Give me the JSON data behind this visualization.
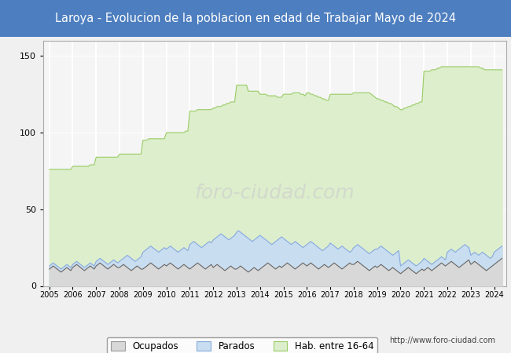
{
  "title": "Laroya - Evolucion de la poblacion en edad de Trabajar Mayo de 2024",
  "title_bg": "#4d7ebf",
  "title_color": "white",
  "ylim": [
    0,
    160
  ],
  "yticks": [
    0,
    50,
    100,
    150
  ],
  "url_text": "http://www.foro-ciudad.com",
  "legend_labels": [
    "Ocupados",
    "Parados",
    "Hab. entre 16-64"
  ],
  "color_ocupados_line": "#666666",
  "color_ocupados_fill": "#d8d8d8",
  "color_parados_line": "#88aadd",
  "color_parados_fill": "#c8ddf0",
  "color_hab_line": "#99cc66",
  "color_hab_fill": "#ddeecc",
  "x_positions": [
    2005.0,
    2005.083,
    2005.167,
    2005.25,
    2005.333,
    2005.417,
    2005.5,
    2005.583,
    2005.667,
    2005.75,
    2005.833,
    2005.917,
    2006.0,
    2006.083,
    2006.167,
    2006.25,
    2006.333,
    2006.417,
    2006.5,
    2006.583,
    2006.667,
    2006.75,
    2006.833,
    2006.917,
    2007.0,
    2007.083,
    2007.167,
    2007.25,
    2007.333,
    2007.417,
    2007.5,
    2007.583,
    2007.667,
    2007.75,
    2007.833,
    2007.917,
    2008.0,
    2008.083,
    2008.167,
    2008.25,
    2008.333,
    2008.417,
    2008.5,
    2008.583,
    2008.667,
    2008.75,
    2008.833,
    2008.917,
    2009.0,
    2009.083,
    2009.167,
    2009.25,
    2009.333,
    2009.417,
    2009.5,
    2009.583,
    2009.667,
    2009.75,
    2009.833,
    2009.917,
    2010.0,
    2010.083,
    2010.167,
    2010.25,
    2010.333,
    2010.417,
    2010.5,
    2010.583,
    2010.667,
    2010.75,
    2010.833,
    2010.917,
    2011.0,
    2011.083,
    2011.167,
    2011.25,
    2011.333,
    2011.417,
    2011.5,
    2011.583,
    2011.667,
    2011.75,
    2011.833,
    2011.917,
    2012.0,
    2012.083,
    2012.167,
    2012.25,
    2012.333,
    2012.417,
    2012.5,
    2012.583,
    2012.667,
    2012.75,
    2012.833,
    2012.917,
    2013.0,
    2013.083,
    2013.167,
    2013.25,
    2013.333,
    2013.417,
    2013.5,
    2013.583,
    2013.667,
    2013.75,
    2013.833,
    2013.917,
    2014.0,
    2014.083,
    2014.167,
    2014.25,
    2014.333,
    2014.417,
    2014.5,
    2014.583,
    2014.667,
    2014.75,
    2014.833,
    2014.917,
    2015.0,
    2015.083,
    2015.167,
    2015.25,
    2015.333,
    2015.417,
    2015.5,
    2015.583,
    2015.667,
    2015.75,
    2015.833,
    2015.917,
    2016.0,
    2016.083,
    2016.167,
    2016.25,
    2016.333,
    2016.417,
    2016.5,
    2016.583,
    2016.667,
    2016.75,
    2016.833,
    2016.917,
    2017.0,
    2017.083,
    2017.167,
    2017.25,
    2017.333,
    2017.417,
    2017.5,
    2017.583,
    2017.667,
    2017.75,
    2017.833,
    2017.917,
    2018.0,
    2018.083,
    2018.167,
    2018.25,
    2018.333,
    2018.417,
    2018.5,
    2018.583,
    2018.667,
    2018.75,
    2018.833,
    2018.917,
    2019.0,
    2019.083,
    2019.167,
    2019.25,
    2019.333,
    2019.417,
    2019.5,
    2019.583,
    2019.667,
    2019.75,
    2019.833,
    2019.917,
    2020.0,
    2020.083,
    2020.167,
    2020.25,
    2020.333,
    2020.417,
    2020.5,
    2020.583,
    2020.667,
    2020.75,
    2020.833,
    2020.917,
    2021.0,
    2021.083,
    2021.167,
    2021.25,
    2021.333,
    2021.417,
    2021.5,
    2021.583,
    2021.667,
    2021.75,
    2021.833,
    2021.917,
    2022.0,
    2022.083,
    2022.167,
    2022.25,
    2022.333,
    2022.417,
    2022.5,
    2022.583,
    2022.667,
    2022.75,
    2022.833,
    2022.917,
    2023.0,
    2023.083,
    2023.167,
    2023.25,
    2023.333,
    2023.417,
    2023.5,
    2023.583,
    2023.667,
    2023.75,
    2023.833,
    2023.917,
    2024.0,
    2024.083,
    2024.167,
    2024.25,
    2024.333
  ],
  "hab_16_64": [
    76,
    76,
    76,
    76,
    76,
    76,
    76,
    76,
    76,
    76,
    76,
    76,
    78,
    78,
    78,
    78,
    78,
    78,
    78,
    78,
    78,
    79,
    79,
    79,
    84,
    84,
    84,
    84,
    84,
    84,
    84,
    84,
    84,
    84,
    84,
    84,
    86,
    86,
    86,
    86,
    86,
    86,
    86,
    86,
    86,
    86,
    86,
    86,
    95,
    95,
    95,
    96,
    96,
    96,
    96,
    96,
    96,
    96,
    96,
    96,
    100,
    100,
    100,
    100,
    100,
    100,
    100,
    100,
    100,
    100,
    101,
    101,
    114,
    114,
    114,
    114,
    115,
    115,
    115,
    115,
    115,
    115,
    115,
    115,
    116,
    116,
    117,
    117,
    117,
    118,
    118,
    119,
    119,
    120,
    120,
    120,
    131,
    131,
    131,
    131,
    131,
    131,
    127,
    127,
    127,
    127,
    127,
    127,
    125,
    125,
    125,
    125,
    124,
    124,
    124,
    124,
    124,
    123,
    123,
    123,
    125,
    125,
    125,
    125,
    125,
    126,
    126,
    126,
    126,
    125,
    125,
    124,
    126,
    126,
    125,
    125,
    124,
    124,
    123,
    123,
    122,
    122,
    121,
    121,
    125,
    125,
    125,
    125,
    125,
    125,
    125,
    125,
    125,
    125,
    125,
    125,
    126,
    126,
    126,
    126,
    126,
    126,
    126,
    126,
    126,
    125,
    124,
    123,
    122,
    122,
    121,
    121,
    120,
    120,
    119,
    119,
    118,
    117,
    117,
    116,
    115,
    115,
    116,
    116,
    117,
    117,
    118,
    118,
    119,
    119,
    120,
    120,
    140,
    140,
    140,
    140,
    141,
    141,
    141,
    142,
    142,
    143,
    143,
    143,
    143,
    143,
    143,
    143,
    143,
    143,
    143,
    143,
    143,
    143,
    143,
    143,
    143,
    143,
    143,
    143,
    143,
    142,
    142,
    141,
    141,
    141,
    141,
    141,
    141,
    141,
    141,
    141,
    141
  ],
  "parados": [
    13,
    14,
    15,
    14,
    13,
    12,
    11,
    12,
    13,
    14,
    13,
    12,
    14,
    15,
    16,
    15,
    14,
    13,
    12,
    13,
    14,
    15,
    14,
    13,
    16,
    17,
    18,
    17,
    16,
    15,
    14,
    15,
    16,
    17,
    16,
    15,
    16,
    17,
    18,
    19,
    20,
    19,
    18,
    17,
    16,
    17,
    18,
    19,
    22,
    23,
    24,
    25,
    26,
    25,
    24,
    23,
    22,
    23,
    24,
    25,
    24,
    25,
    26,
    25,
    24,
    23,
    22,
    23,
    24,
    25,
    24,
    23,
    27,
    28,
    29,
    28,
    27,
    26,
    25,
    26,
    27,
    28,
    29,
    28,
    30,
    31,
    32,
    33,
    34,
    33,
    32,
    31,
    30,
    31,
    32,
    33,
    35,
    36,
    35,
    34,
    33,
    32,
    31,
    30,
    29,
    30,
    31,
    32,
    33,
    32,
    31,
    30,
    29,
    28,
    27,
    28,
    29,
    30,
    31,
    32,
    31,
    30,
    29,
    28,
    27,
    28,
    29,
    28,
    27,
    26,
    25,
    26,
    27,
    28,
    29,
    28,
    27,
    26,
    25,
    24,
    23,
    24,
    25,
    26,
    28,
    27,
    26,
    25,
    24,
    25,
    26,
    25,
    24,
    23,
    22,
    23,
    25,
    26,
    27,
    26,
    25,
    24,
    23,
    22,
    21,
    22,
    23,
    24,
    24,
    25,
    26,
    25,
    24,
    23,
    22,
    21,
    20,
    21,
    22,
    23,
    13,
    14,
    15,
    16,
    17,
    16,
    15,
    14,
    13,
    14,
    15,
    16,
    18,
    17,
    16,
    15,
    14,
    15,
    16,
    17,
    18,
    19,
    18,
    17,
    22,
    23,
    24,
    23,
    22,
    23,
    24,
    25,
    26,
    27,
    26,
    25,
    20,
    21,
    22,
    21,
    20,
    21,
    22,
    21,
    20,
    19,
    18,
    19,
    22,
    23,
    24,
    25,
    26
  ],
  "ocupados": [
    11,
    12,
    13,
    12,
    11,
    10,
    9,
    10,
    11,
    12,
    11,
    10,
    12,
    13,
    14,
    13,
    12,
    11,
    10,
    11,
    12,
    13,
    12,
    11,
    13,
    14,
    15,
    14,
    13,
    12,
    11,
    12,
    13,
    14,
    13,
    12,
    12,
    13,
    14,
    13,
    12,
    11,
    10,
    11,
    12,
    13,
    12,
    11,
    11,
    12,
    13,
    14,
    15,
    14,
    13,
    12,
    11,
    12,
    13,
    14,
    13,
    14,
    15,
    14,
    13,
    12,
    11,
    12,
    13,
    14,
    13,
    12,
    11,
    12,
    13,
    14,
    15,
    14,
    13,
    12,
    11,
    12,
    13,
    14,
    12,
    13,
    14,
    13,
    12,
    11,
    10,
    11,
    12,
    13,
    12,
    11,
    11,
    12,
    13,
    12,
    11,
    10,
    9,
    10,
    11,
    12,
    11,
    10,
    11,
    12,
    13,
    14,
    15,
    14,
    13,
    12,
    11,
    12,
    13,
    12,
    13,
    14,
    15,
    14,
    13,
    12,
    11,
    12,
    13,
    14,
    15,
    14,
    13,
    14,
    15,
    14,
    13,
    12,
    11,
    12,
    13,
    14,
    13,
    12,
    13,
    14,
    15,
    14,
    13,
    12,
    11,
    12,
    13,
    14,
    15,
    14,
    14,
    15,
    16,
    15,
    14,
    13,
    12,
    11,
    10,
    11,
    12,
    13,
    12,
    13,
    14,
    13,
    12,
    11,
    10,
    11,
    12,
    11,
    10,
    9,
    8,
    9,
    10,
    11,
    12,
    11,
    10,
    9,
    8,
    9,
    10,
    11,
    10,
    11,
    12,
    11,
    10,
    11,
    12,
    13,
    14,
    15,
    14,
    13,
    14,
    15,
    16,
    15,
    14,
    13,
    12,
    13,
    14,
    15,
    16,
    17,
    14,
    15,
    16,
    15,
    14,
    13,
    12,
    11,
    10,
    11,
    12,
    13,
    14,
    15,
    16,
    17,
    18
  ]
}
